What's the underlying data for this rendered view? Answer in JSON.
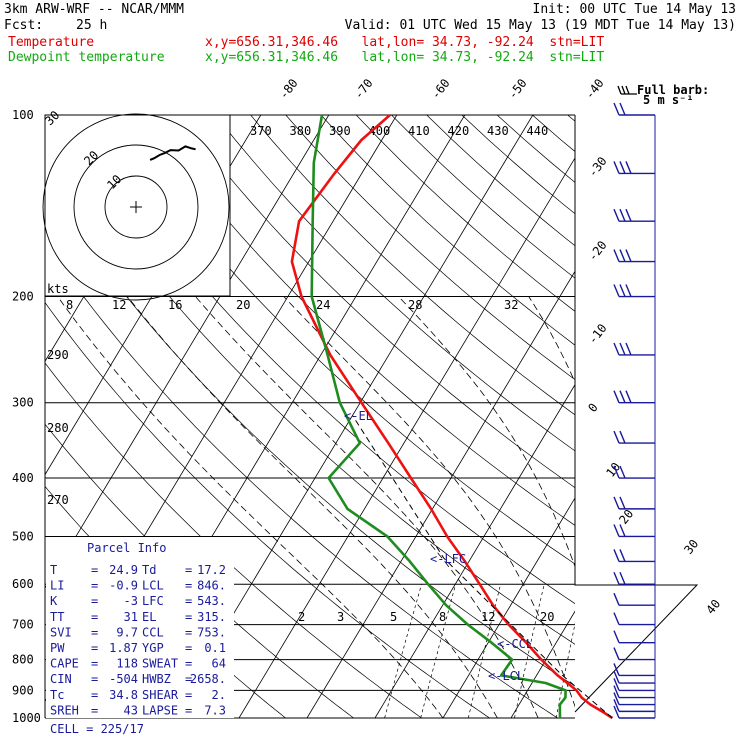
{
  "header": {
    "model": "3km ARW-WRF -- NCAR/MMM",
    "init": "Init: 00 UTC Tue 14 May 13",
    "fcst_label": "Fcst:",
    "fcst_value": "25 h",
    "valid": "Valid: 01 UTC Wed 15 May 13 (19 MDT Tue 14 May 13)",
    "temp_label": "Temperature",
    "temp_info": "x,y=656.31,346.46   lat,lon= 34.73, -92.24  stn=LIT",
    "dew_label": "Dewpoint temperature",
    "dew_info": "x,y=656.31,346.46   lat,lon= 34.73, -92.24  stn=LIT",
    "barb_title": "Full barb:",
    "barb_unit": "5 m s⁻¹"
  },
  "colors": {
    "temperature": "#ee1111",
    "dewpoint": "#1f8c1f",
    "labels": "#1a1a9c",
    "header_red": "#dd0000",
    "header_green": "#11aa11"
  },
  "parcel_info": {
    "title": "Parcel Info",
    "rows": [
      {
        "k1": "T",
        "v1": "24.9",
        "k2": "Td",
        "v2": "17.2"
      },
      {
        "k1": "LI",
        "v1": "-0.9",
        "k2": "LCL",
        "v2": "846."
      },
      {
        "k1": "K",
        "v1": "-3",
        "k2": "LFC",
        "v2": "543."
      },
      {
        "k1": "TT",
        "v1": "31",
        "k2": "EL",
        "v2": "315."
      },
      {
        "k1": "SVI",
        "v1": "9.7",
        "k2": "CCL",
        "v2": "753."
      },
      {
        "k1": "PW",
        "v1": "1.87",
        "k2": "YGP",
        "v2": "0.1"
      },
      {
        "k1": "CAPE",
        "v1": "118",
        "k2": "SWEAT",
        "v2": "64"
      },
      {
        "k1": "CIN",
        "v1": "-504",
        "k2": "HWBZ",
        "v2": "2658."
      },
      {
        "k1": "Tc",
        "v1": "34.8",
        "k2": "SHEAR",
        "v2": "2."
      },
      {
        "k1": "SREH",
        "v1": "43",
        "k2": "LAPSE",
        "v2": "7.3"
      }
    ],
    "cell": "CELL = 225/17"
  },
  "level_labels": {
    "el": "<-EL",
    "lfc": "<-LFC",
    "ccl": "<-CCL",
    "lcl": "<-LCL",
    "kts": "kts"
  },
  "chart_data": {
    "type": "line",
    "title": "",
    "ylabel": "",
    "xlabel": "",
    "y_scale": "log pressure (reversed)",
    "ylim": [
      1000,
      100
    ],
    "pressure_ticks": [
      "100",
      "200",
      "300",
      "400",
      "500",
      "600",
      "700",
      "800",
      "900",
      "1000"
    ],
    "temperature_ticks": [
      "-80",
      "-70",
      "-60",
      "-50",
      "-40",
      "-30",
      "-20",
      "-10",
      "0",
      "10",
      "20",
      "30",
      "40"
    ],
    "theta_labels": [
      "370",
      "380",
      "390",
      "400",
      "410",
      "420",
      "430",
      "440"
    ],
    "mixing_ratio_labels": [
      "2",
      "3",
      "5",
      "8",
      "12",
      "20"
    ],
    "theta_e_lower_labels": [
      "290",
      "280",
      "270"
    ],
    "hodo_ring_labels": [
      "10",
      "20",
      "30"
    ],
    "hodo_speed_ticks": [
      "8",
      "12",
      "16",
      "20",
      "24",
      "28",
      "32"
    ],
    "series": [
      {
        "name": "Temperature",
        "pressure": [
          1000,
          975,
          950,
          925,
          900,
          875,
          850,
          800,
          750,
          700,
          650,
          600,
          550,
          500,
          450,
          400,
          350,
          300,
          250,
          200,
          175,
          150,
          125,
          110,
          100
        ],
        "values": [
          24.9,
          22.8,
          20.5,
          18.6,
          17.2,
          15.2,
          13.1,
          9.3,
          5.6,
          1.4,
          -2.6,
          -6.4,
          -10.6,
          -15.4,
          -20.2,
          -25.9,
          -32.3,
          -39.8,
          -48.6,
          -58.0,
          -62.5,
          -65.0,
          -64.0,
          -63.0,
          -61.0
        ]
      },
      {
        "name": "Dewpoint temperature",
        "pressure": [
          1000,
          975,
          950,
          925,
          900,
          875,
          850,
          800,
          750,
          700,
          650,
          600,
          550,
          500,
          450,
          400,
          350,
          300,
          250,
          200,
          150,
          120,
          100
        ],
        "values": [
          17.2,
          16.6,
          16.0,
          16.2,
          15.6,
          12.0,
          4.8,
          5.0,
          0.5,
          -4.6,
          -9.5,
          -14.0,
          -18.7,
          -24.2,
          -32.5,
          -38.0,
          -36.5,
          -43.0,
          -49.0,
          -56.5,
          -63.0,
          -68.0,
          -71.0
        ]
      }
    ],
    "wind_profile": {
      "pressure": [
        1000,
        975,
        950,
        925,
        900,
        875,
        850,
        800,
        750,
        700,
        650,
        600,
        550,
        500,
        450,
        400,
        350,
        300,
        250,
        200,
        175,
        150,
        125,
        100
      ],
      "speed_ms": [
        4,
        5,
        6,
        6,
        5,
        5,
        6,
        6,
        6,
        6,
        7,
        8,
        9,
        9,
        10,
        11,
        12,
        13,
        14,
        15,
        15,
        14,
        13,
        12
      ]
    },
    "hodograph": {
      "u": [
        0.6,
        1.2,
        2.0,
        2.8,
        3.6,
        4.8,
        5.8,
        6.7,
        7.3
      ],
      "v": [
        4.2,
        4.6,
        5.4,
        5.9,
        6.6,
        6.5,
        7.5,
        7.0,
        6.8
      ]
    },
    "grid": true,
    "legend": "top-left"
  }
}
